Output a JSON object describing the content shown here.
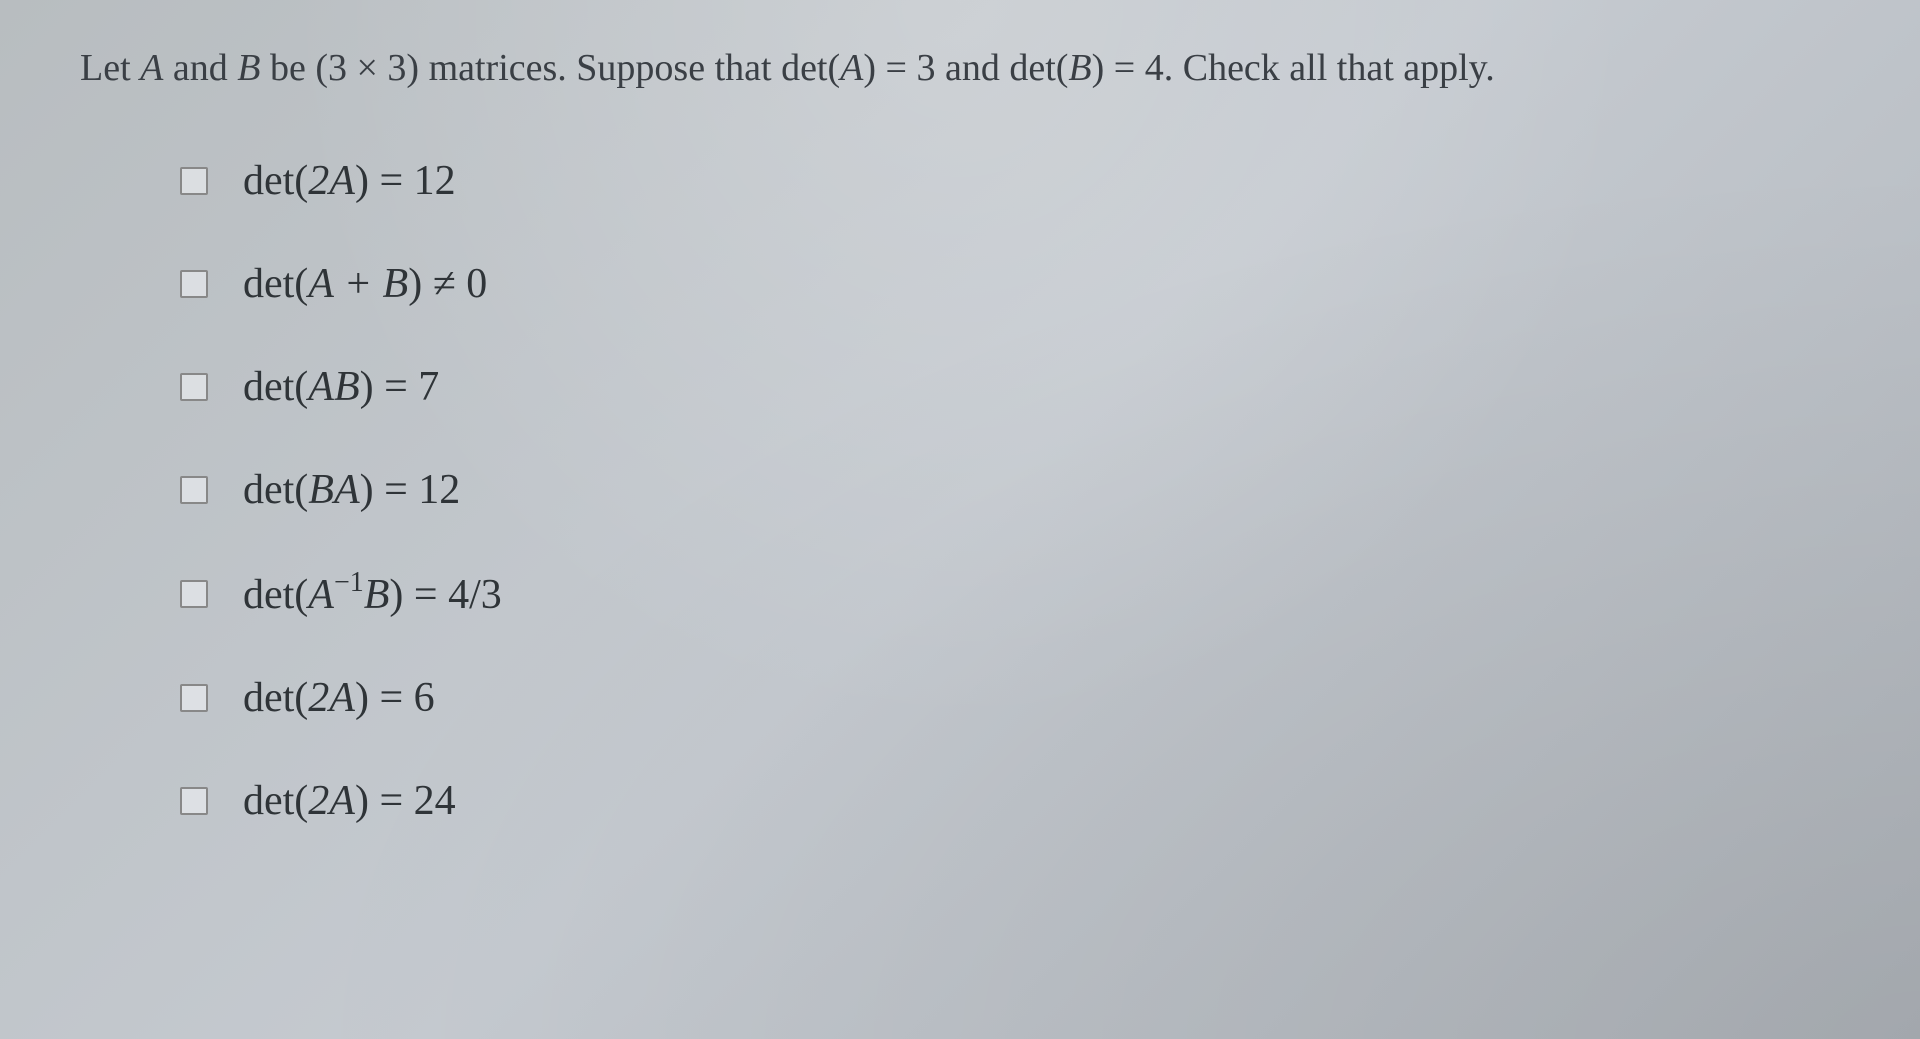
{
  "question": {
    "prefix": "Let ",
    "varA": "A",
    "and1": " and ",
    "varB": "B",
    "be": " be ",
    "dim": "(3 × 3)",
    "matrices": " matrices. Suppose that ",
    "detA": "det(",
    "detA_var": "A",
    "detA_close": ")",
    "eq1": " = ",
    "val1": "3",
    "and2": " and ",
    "detB": "det(",
    "detB_var": "B",
    "detB_close": ")",
    "eq2": " = ",
    "val2": "4",
    "suffix": ". Check all that apply."
  },
  "options": [
    {
      "det_open": "det(",
      "inner": "2A",
      "det_close": ")",
      "eq": " = ",
      "value": "12"
    },
    {
      "det_open": "det(",
      "inner": "A + B",
      "det_close": ")",
      "eq": " ≠ ",
      "value": "0"
    },
    {
      "det_open": "det(",
      "inner": "AB",
      "det_close": ")",
      "eq": " = ",
      "value": "7"
    },
    {
      "det_open": "det(",
      "inner": "BA",
      "det_close": ")",
      "eq": " = ",
      "value": "12"
    },
    {
      "det_open": "det(",
      "inner_pre": "A",
      "inner_sup": "−1",
      "inner_post": "B",
      "det_close": ")",
      "eq": " = ",
      "value": "4/3"
    },
    {
      "det_open": "det(",
      "inner": "2A",
      "det_close": ")",
      "eq": " = ",
      "value": "6"
    },
    {
      "det_open": "det(",
      "inner": "2A",
      "det_close": ")",
      "eq": " = ",
      "value": "24"
    }
  ],
  "colors": {
    "text": "#3a3f45",
    "option_text": "#2f3438",
    "checkbox_border": "#888",
    "background": "#bcc1c6"
  },
  "typography": {
    "question_fontsize": 38,
    "option_fontsize": 42,
    "font_family": "Times New Roman"
  }
}
